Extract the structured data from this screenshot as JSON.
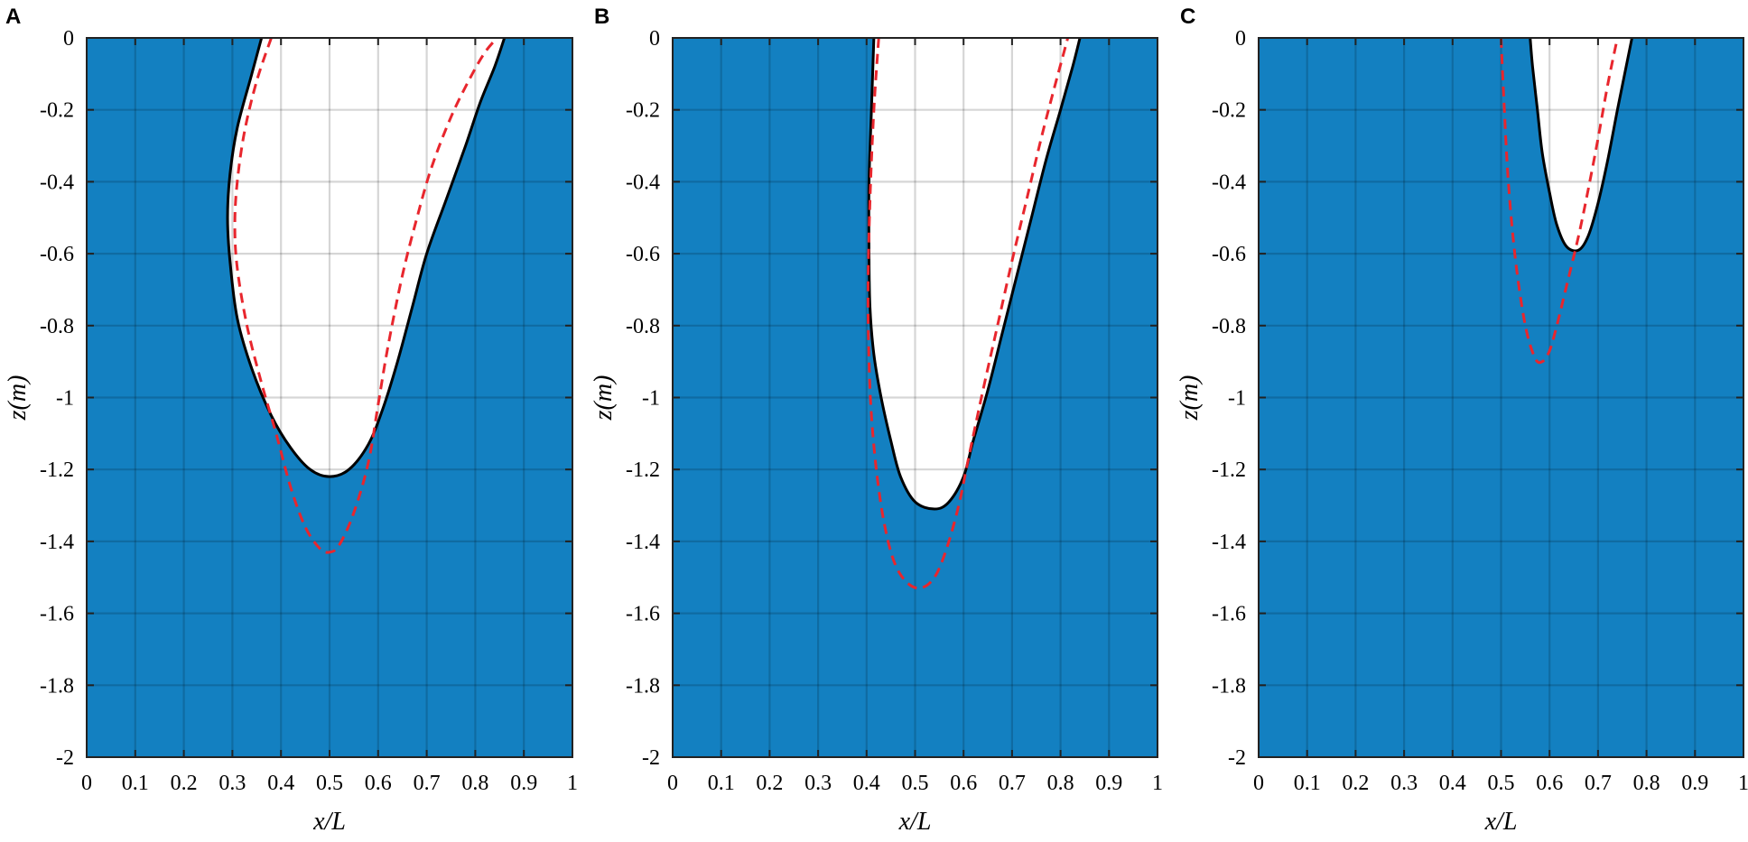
{
  "chart_data": [
    {
      "type": "area",
      "panel_label": "A",
      "xlabel": "x/L",
      "ylabel": "z(m)",
      "xlim": [
        0,
        1
      ],
      "ylim": [
        -2,
        0
      ],
      "xticks": [
        "0",
        "0.1",
        "0.2",
        "0.3",
        "0.4",
        "0.5",
        "0.6",
        "0.7",
        "0.8",
        "0.9",
        "1"
      ],
      "yticks": [
        "0",
        "-0.2",
        "-0.4",
        "-0.6",
        "-0.8",
        "-1",
        "-1.2",
        "-1.4",
        "-1.6",
        "-1.8",
        "-2"
      ],
      "grid": true,
      "colors": {
        "fill": "#1380c1",
        "cavity": "#ffffff",
        "solid_line": "#000000",
        "dashed_line": "#e8262d"
      },
      "series": [
        {
          "style": "solid",
          "x": [
            0.36,
            0.34,
            0.31,
            0.295,
            0.29,
            0.295,
            0.31,
            0.34,
            0.38,
            0.42,
            0.46,
            0.5,
            0.54,
            0.58,
            0.61,
            0.64,
            0.67,
            0.7,
            0.74,
            0.78,
            0.81,
            0.84,
            0.86
          ],
          "y": [
            0,
            -0.1,
            -0.25,
            -0.38,
            -0.5,
            -0.62,
            -0.78,
            -0.92,
            -1.05,
            -1.14,
            -1.2,
            -1.22,
            -1.2,
            -1.13,
            -1.03,
            -0.9,
            -0.75,
            -0.6,
            -0.45,
            -0.3,
            -0.18,
            -0.08,
            0
          ]
        },
        {
          "style": "dashed",
          "x": [
            0.38,
            0.35,
            0.325,
            0.31,
            0.305,
            0.31,
            0.33,
            0.36,
            0.39,
            0.42,
            0.45,
            0.48,
            0.5,
            0.52,
            0.55,
            0.58,
            0.6,
            0.62,
            0.65,
            0.68,
            0.71,
            0.75,
            0.79,
            0.82,
            0.845
          ],
          "y": [
            0,
            -0.12,
            -0.26,
            -0.4,
            -0.52,
            -0.64,
            -0.8,
            -0.96,
            -1.1,
            -1.25,
            -1.36,
            -1.42,
            -1.43,
            -1.41,
            -1.32,
            -1.18,
            -1.02,
            -0.86,
            -0.66,
            -0.5,
            -0.36,
            -0.22,
            -0.11,
            -0.04,
            0
          ]
        }
      ]
    },
    {
      "type": "area",
      "panel_label": "B",
      "xlabel": "x/L",
      "ylabel": "z(m)",
      "xlim": [
        0,
        1
      ],
      "ylim": [
        -2,
        0
      ],
      "xticks": [
        "0",
        "0.1",
        "0.2",
        "0.3",
        "0.4",
        "0.5",
        "0.6",
        "0.7",
        "0.8",
        "0.9",
        "1"
      ],
      "yticks": [
        "0",
        "-0.2",
        "-0.4",
        "-0.6",
        "-0.8",
        "-1",
        "-1.2",
        "-1.4",
        "-1.6",
        "-1.8",
        "-2"
      ],
      "grid": true,
      "colors": {
        "fill": "#1380c1",
        "cavity": "#ffffff",
        "solid_line": "#000000",
        "dashed_line": "#e8262d"
      },
      "series": [
        {
          "style": "solid",
          "x": [
            0.415,
            0.41,
            0.405,
            0.405,
            0.407,
            0.415,
            0.43,
            0.45,
            0.47,
            0.5,
            0.54,
            0.57,
            0.6,
            0.62,
            0.65,
            0.68,
            0.71,
            0.74,
            0.77,
            0.8,
            0.825,
            0.84
          ],
          "y": [
            0,
            -0.2,
            -0.4,
            -0.6,
            -0.75,
            -0.88,
            -1.0,
            -1.12,
            -1.22,
            -1.29,
            -1.31,
            -1.29,
            -1.22,
            -1.12,
            -0.98,
            -0.82,
            -0.66,
            -0.5,
            -0.34,
            -0.2,
            -0.08,
            0
          ]
        },
        {
          "style": "dashed",
          "x": [
            0.425,
            0.415,
            0.407,
            0.403,
            0.405,
            0.41,
            0.42,
            0.435,
            0.455,
            0.48,
            0.51,
            0.54,
            0.565,
            0.59,
            0.61,
            0.64,
            0.67,
            0.7,
            0.73,
            0.76,
            0.785,
            0.805,
            0.815
          ],
          "y": [
            0,
            -0.2,
            -0.45,
            -0.7,
            -0.9,
            -1.05,
            -1.2,
            -1.34,
            -1.45,
            -1.51,
            -1.53,
            -1.5,
            -1.42,
            -1.3,
            -1.17,
            -0.98,
            -0.8,
            -0.62,
            -0.45,
            -0.28,
            -0.15,
            -0.05,
            0
          ]
        }
      ]
    },
    {
      "type": "area",
      "panel_label": "C",
      "xlabel": "x/L",
      "ylabel": "z(m)",
      "xlim": [
        0,
        1
      ],
      "ylim": [
        -2,
        0
      ],
      "xticks": [
        "0",
        "0.1",
        "0.2",
        "0.3",
        "0.4",
        "0.5",
        "0.6",
        "0.7",
        "0.8",
        "0.9",
        "1"
      ],
      "yticks": [
        "0",
        "-0.2",
        "-0.4",
        "-0.6",
        "-0.8",
        "-1",
        "-1.2",
        "-1.4",
        "-1.6",
        "-1.8",
        "-2"
      ],
      "grid": true,
      "colors": {
        "fill": "#1380c1",
        "cavity": "#ffffff",
        "solid_line": "#000000",
        "dashed_line": "#e8262d"
      },
      "series": [
        {
          "style": "solid",
          "x": [
            0.56,
            0.565,
            0.575,
            0.585,
            0.6,
            0.615,
            0.635,
            0.66,
            0.68,
            0.7,
            0.72,
            0.74,
            0.755,
            0.77
          ],
          "y": [
            0,
            -0.08,
            -0.2,
            -0.32,
            -0.43,
            -0.52,
            -0.58,
            -0.59,
            -0.55,
            -0.46,
            -0.34,
            -0.2,
            -0.1,
            0
          ]
        },
        {
          "style": "dashed",
          "x": [
            0.5,
            0.505,
            0.515,
            0.53,
            0.55,
            0.57,
            0.585,
            0.6,
            0.615,
            0.635,
            0.66,
            0.68,
            0.7,
            0.72,
            0.74
          ],
          "y": [
            0,
            -0.15,
            -0.4,
            -0.62,
            -0.8,
            -0.89,
            -0.9,
            -0.87,
            -0.8,
            -0.69,
            -0.55,
            -0.42,
            -0.28,
            -0.13,
            0
          ]
        }
      ]
    }
  ]
}
